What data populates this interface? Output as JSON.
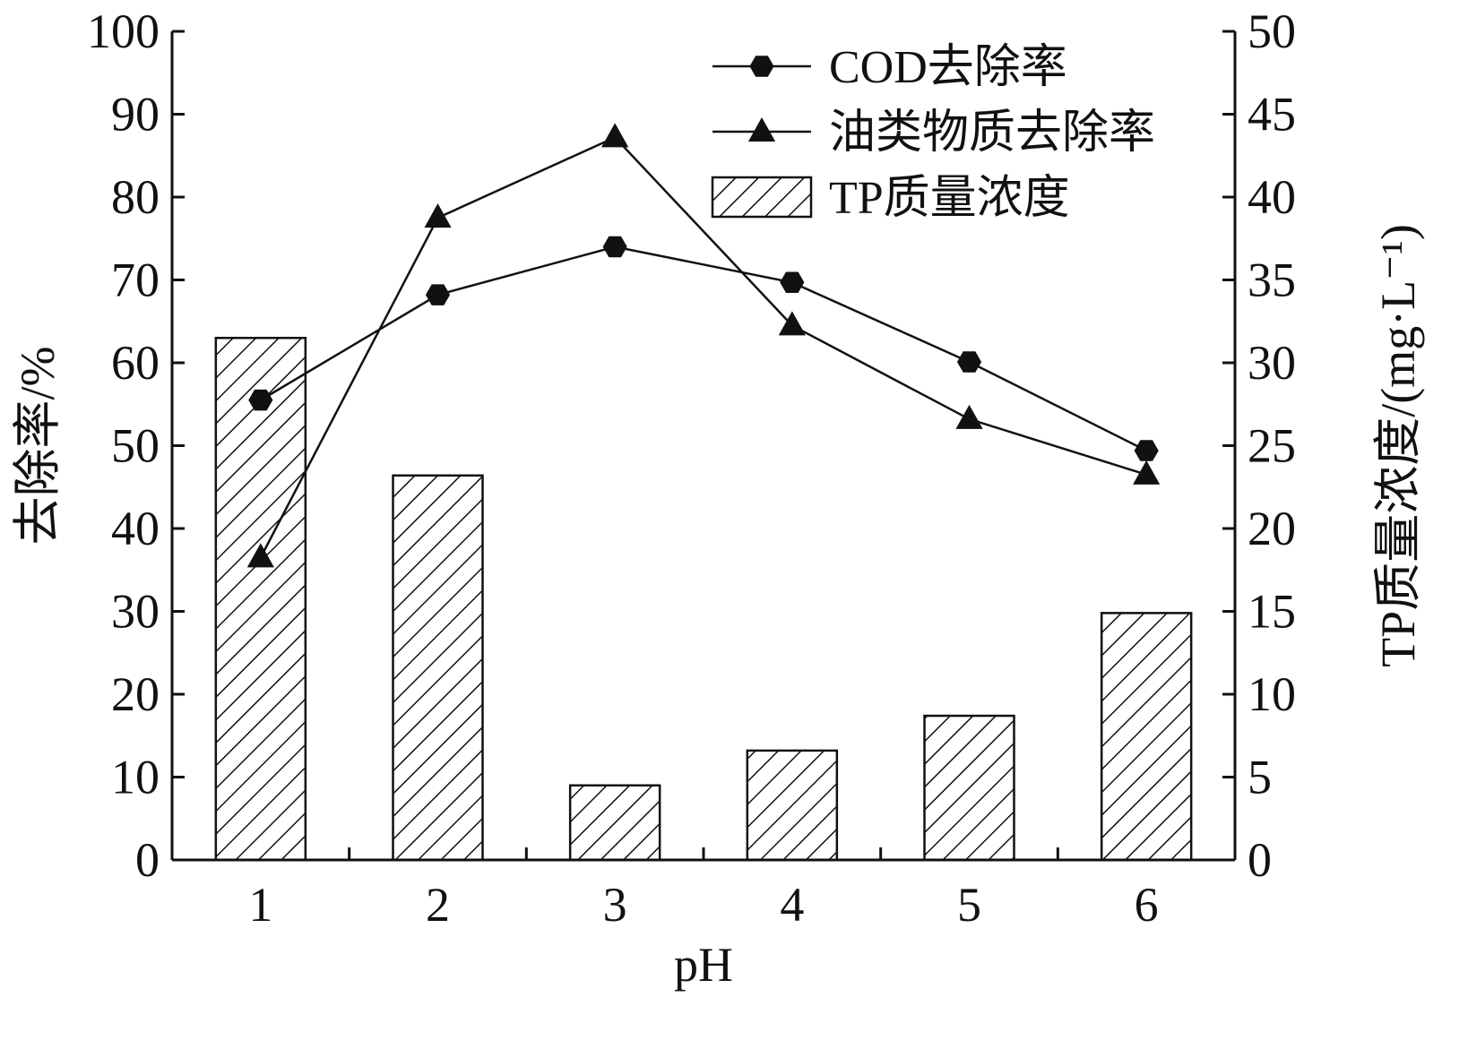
{
  "chart_data": {
    "type": "bar+line",
    "x_categories": [
      "1",
      "2",
      "3",
      "4",
      "5",
      "6"
    ],
    "xlabel": "pH",
    "ylabel_left": "去除率/%",
    "ylabel_right": "TP质量浓度/(mg·L⁻¹)",
    "ylim_left": [
      0,
      100
    ],
    "ylim_right": [
      0,
      50
    ],
    "yticks_left": [
      "0",
      "10",
      "20",
      "30",
      "40",
      "50",
      "60",
      "70",
      "80",
      "90",
      "100"
    ],
    "yticks_right": [
      "0",
      "5",
      "10",
      "15",
      "20",
      "25",
      "30",
      "35",
      "40",
      "45",
      "50"
    ],
    "grid": false,
    "legend_position": "top-right",
    "series": [
      {
        "name": "COD去除率",
        "type": "line",
        "axis": "left",
        "marker": "hexagon",
        "values": [
          55.5,
          68.2,
          74.0,
          69.7,
          60.1,
          49.4
        ]
      },
      {
        "name": "油类物质去除率",
        "type": "line",
        "axis": "left",
        "marker": "triangle",
        "values": [
          36.5,
          77.5,
          87.2,
          64.5,
          53.2,
          46.5
        ]
      },
      {
        "name": "TP质量浓度",
        "type": "bar",
        "axis": "right",
        "pattern": "hatched",
        "values": [
          31.5,
          23.2,
          4.5,
          6.6,
          8.7,
          14.9
        ]
      }
    ]
  }
}
